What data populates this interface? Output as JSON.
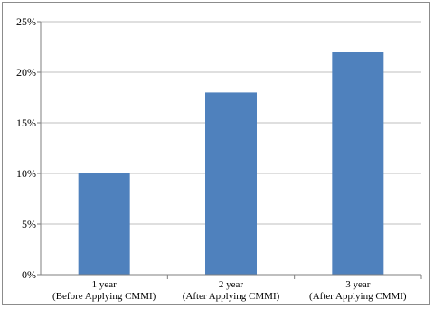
{
  "chart_data": {
    "type": "bar",
    "categories": [
      [
        "1 year",
        "(Before Applying CMMI)"
      ],
      [
        "2 year",
        "(After Applying CMMI)"
      ],
      [
        "3 year",
        "(After Applying CMMI)"
      ]
    ],
    "values": [
      10,
      18,
      22
    ],
    "y_ticks": [
      "0%",
      "5%",
      "10%",
      "15%",
      "20%",
      "25%"
    ],
    "ylim": [
      0,
      25
    ],
    "grid": true,
    "legend": "none",
    "colors": {
      "bar": "#4f81bd",
      "grid": "#bfbfbf",
      "axis": "#7f7f7f"
    }
  }
}
